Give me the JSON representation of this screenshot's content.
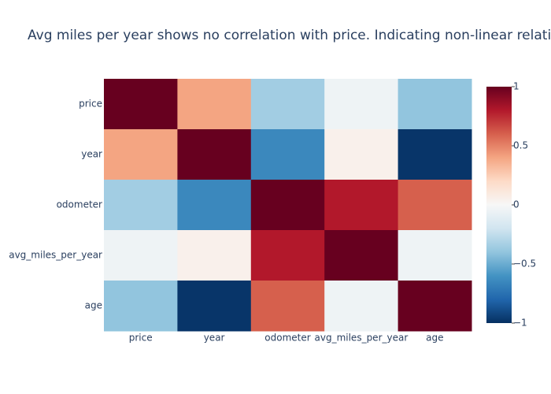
{
  "chart_data": {
    "type": "heatmap",
    "title": "Avg miles per year shows no correlation with price. Indicating non-linear relati",
    "x": [
      "price",
      "year",
      "odometer",
      "avg_miles_per_year",
      "age"
    ],
    "y": [
      "price",
      "year",
      "odometer",
      "avg_miles_per_year",
      "age"
    ],
    "z": [
      [
        1,
        0.4,
        -0.35,
        -0.05,
        -0.4
      ],
      [
        0.4,
        1,
        -0.65,
        0.05,
        -0.98
      ],
      [
        -0.35,
        -0.65,
        1,
        0.8,
        0.6
      ],
      [
        -0.05,
        0.05,
        0.8,
        1,
        -0.05
      ],
      [
        -0.4,
        -0.98,
        0.6,
        -0.05,
        1
      ]
    ],
    "zlim": [
      -1,
      1
    ],
    "colorscale": [
      "#053061",
      "#2166ac",
      "#4393c3",
      "#92c5de",
      "#d1e5f0",
      "#f7f7f7",
      "#fddbc7",
      "#f4a582",
      "#d6604d",
      "#b2182b",
      "#67001f"
    ],
    "colorbar_ticks": [
      1,
      0.5,
      0,
      {
        "value": -0.5,
        "label": "−0.5"
      },
      {
        "value": -1,
        "label": "−1"
      }
    ]
  }
}
